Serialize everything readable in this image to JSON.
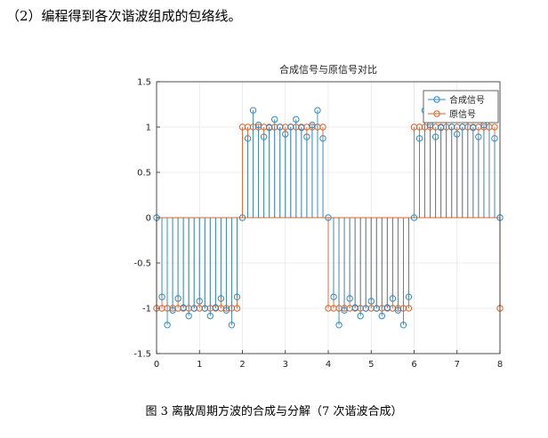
{
  "heading": "（2）编程得到各次谐波组成的包络线。",
  "caption": "图 3 离散周期方波的合成与分解（7 次谐波合成）",
  "chart_data": {
    "type": "stem",
    "title": "合成信号与原信号对比",
    "xlabel": "",
    "ylabel": "",
    "xlim": [
      0,
      8
    ],
    "ylim": [
      -1.5,
      1.5
    ],
    "xticks": [
      "0",
      "1",
      "2",
      "3",
      "4",
      "5",
      "6",
      "7",
      "8"
    ],
    "yticks": [
      "-1.5",
      "-1",
      "-0.5",
      "0",
      "0.5",
      "1",
      "1.5"
    ],
    "grid": true,
    "legend_position": "top-right",
    "x_step": 0.125,
    "harmonics": 7,
    "series": [
      {
        "name": "合成信号",
        "color": "#2b8cc4",
        "kind": "fourier-synthesis"
      },
      {
        "name": "原信号",
        "color": "#e0602a",
        "kind": "square-wave"
      }
    ]
  }
}
